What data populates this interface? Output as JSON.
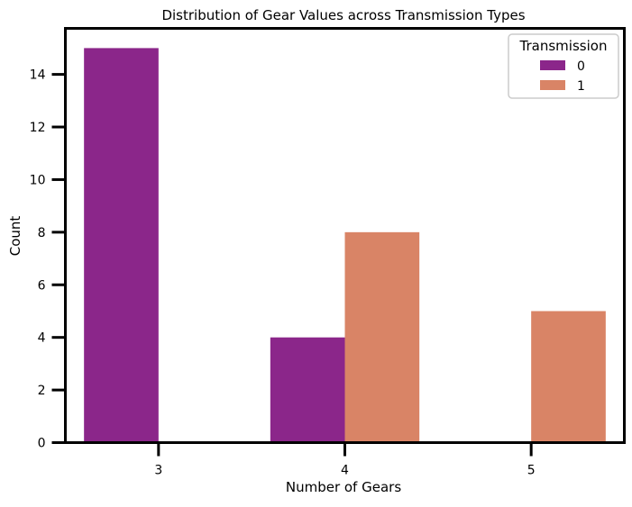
{
  "chart_data": {
    "type": "bar",
    "title": "Distribution of Gear Values across Transmission Types",
    "xlabel": "Number of Gears",
    "ylabel": "Count",
    "categories": [
      "3",
      "4",
      "5"
    ],
    "ylim": [
      0,
      15.75
    ],
    "yticks": [
      "0",
      "2",
      "4",
      "6",
      "8",
      "10",
      "12",
      "14"
    ],
    "grid": false,
    "legend": {
      "title": "Transmission",
      "position": "top-right"
    },
    "series": [
      {
        "name": "0",
        "color": "#8b268a",
        "values": [
          15,
          4,
          0
        ]
      },
      {
        "name": "1",
        "color": "#d98466",
        "values": [
          0,
          8,
          5
        ]
      }
    ]
  }
}
